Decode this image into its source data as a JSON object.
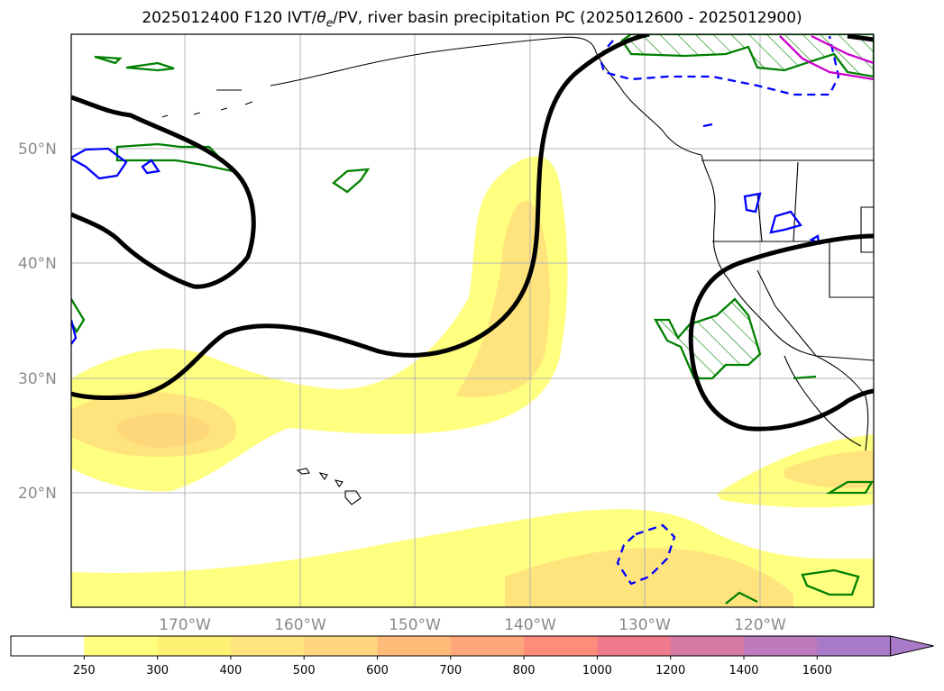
{
  "title": {
    "text_pre": "2025012400 F120 IVT/",
    "theta": "θ",
    "theta_sub": "e",
    "text_post": "/PV, river basin precipitation PC (2025012600 - 2025012900)"
  },
  "axes": {
    "lat_labels": [
      "50°N",
      "40°N",
      "30°N",
      "20°N"
    ],
    "lon_labels": [
      "170°W",
      "160°W",
      "150°W",
      "140°W",
      "130°W",
      "120°W"
    ]
  },
  "colorbar": {
    "ticks": [
      "250",
      "300",
      "400",
      "500",
      "600",
      "700",
      "800",
      "1000",
      "1200",
      "1400",
      "1600"
    ],
    "colors": [
      "#ffffff",
      "#ffff80",
      "#fff173",
      "#ffe47d",
      "#ffd57e",
      "#ffbb7a",
      "#ffa77a",
      "#ff8c7a",
      "#ee7a8c",
      "#d67aa5",
      "#bd7abd",
      "#a87ac8"
    ],
    "extend": "max"
  },
  "colors": {
    "ivt_light": "#ffff80",
    "ivt_mid": "#ffe47d",
    "ivt_dark": "#fdd77a",
    "pv_contour": "#000000",
    "theta_pos": "#0000ff",
    "precip_green": "#008000",
    "magenta": "#cc00cc"
  }
}
